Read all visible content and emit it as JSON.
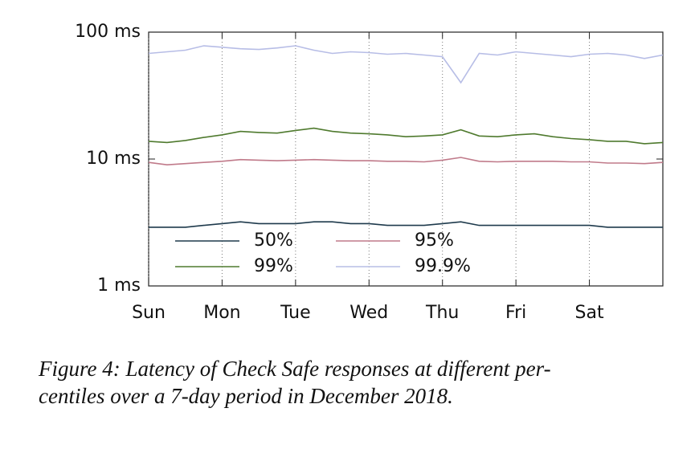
{
  "chart_data": {
    "type": "line",
    "x": [
      0,
      0.25,
      0.5,
      0.75,
      1,
      1.25,
      1.5,
      1.75,
      2,
      2.25,
      2.5,
      2.75,
      3,
      3.25,
      3.5,
      3.75,
      4,
      4.25,
      4.5,
      4.75,
      5,
      5.25,
      5.5,
      5.75,
      6,
      6.25,
      6.5,
      6.75,
      7
    ],
    "xlim": [
      0,
      7
    ],
    "xticks": [
      {
        "value": 0,
        "label": "Sun"
      },
      {
        "value": 1,
        "label": "Mon"
      },
      {
        "value": 2,
        "label": "Tue"
      },
      {
        "value": 3,
        "label": "Wed"
      },
      {
        "value": 4,
        "label": "Thu"
      },
      {
        "value": 5,
        "label": "Fri"
      },
      {
        "value": 6,
        "label": "Sat"
      }
    ],
    "ylim": [
      1,
      100
    ],
    "yticks": [
      {
        "value": 1,
        "label": "1 ms"
      },
      {
        "value": 10,
        "label": "10 ms"
      },
      {
        "value": 100,
        "label": "100 ms"
      }
    ],
    "log_y": true,
    "grid": true,
    "series": [
      {
        "name": "50%",
        "color": "#1e3a4c",
        "values": [
          2.9,
          2.9,
          2.9,
          3.0,
          3.1,
          3.2,
          3.1,
          3.1,
          3.1,
          3.2,
          3.2,
          3.1,
          3.1,
          3.0,
          3.0,
          3.0,
          3.1,
          3.2,
          3.0,
          3.0,
          3.0,
          3.0,
          3.0,
          3.0,
          3.0,
          2.9,
          2.9,
          2.9,
          2.9
        ]
      },
      {
        "name": "95%",
        "color": "#c07a8a",
        "values": [
          9.4,
          9.0,
          9.2,
          9.4,
          9.6,
          9.9,
          9.8,
          9.7,
          9.8,
          9.9,
          9.8,
          9.7,
          9.7,
          9.6,
          9.6,
          9.5,
          9.8,
          10.3,
          9.6,
          9.5,
          9.6,
          9.6,
          9.6,
          9.5,
          9.5,
          9.3,
          9.3,
          9.2,
          9.4
        ]
      },
      {
        "name": "99%",
        "color": "#4f7a2e",
        "values": [
          13.8,
          13.5,
          14.0,
          14.8,
          15.5,
          16.5,
          16.2,
          16.0,
          16.8,
          17.5,
          16.5,
          16.0,
          15.8,
          15.5,
          15.0,
          15.2,
          15.5,
          17.0,
          15.2,
          15.0,
          15.5,
          15.8,
          15.0,
          14.5,
          14.2,
          13.8,
          13.8,
          13.2,
          13.5
        ]
      },
      {
        "name": "99.9%",
        "color": "#b7bde6",
        "values": [
          68,
          70,
          72,
          78,
          76,
          74,
          73,
          75,
          78,
          72,
          68,
          70,
          69,
          67,
          68,
          66,
          64,
          40,
          68,
          66,
          70,
          68,
          66,
          64,
          67,
          68,
          66,
          62,
          66
        ]
      }
    ],
    "caption": [
      "Figure 4: Latency of Check Safe responses at different per-",
      "centiles over a 7-day period in December 2018."
    ]
  }
}
